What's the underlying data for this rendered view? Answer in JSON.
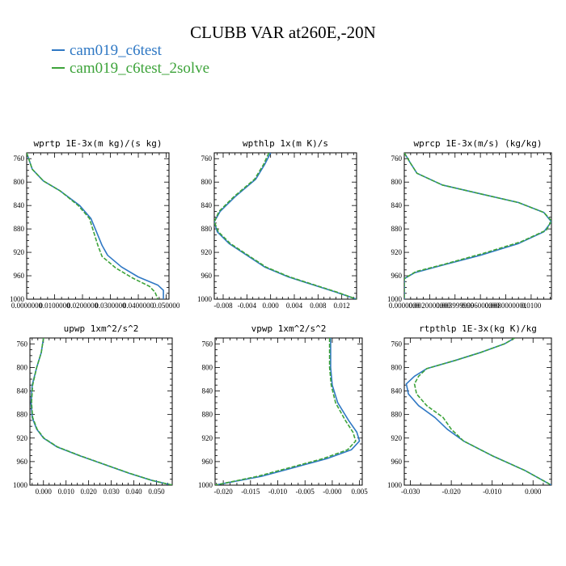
{
  "title": "CLUBB VAR at260E,-20N",
  "legend": [
    {
      "label": "cam019_c6test",
      "color": "#2f78c4"
    },
    {
      "label": "cam019_c6test_2solve",
      "color": "#3da33a"
    }
  ],
  "chart_data": [
    {
      "type": "line",
      "title": "wprtp  1E-3x(m kg)/(s kg)",
      "xlim": [
        0,
        0.051
      ],
      "ylim": [
        1000,
        750
      ],
      "yticks": [
        760,
        800,
        840,
        880,
        920,
        960,
        1000
      ],
      "xticks": [
        0.0,
        0.01,
        0.02,
        0.03,
        0.04,
        0.05
      ],
      "xtick_labels": [
        "0.0000000",
        "0.0100000",
        "0.0200000",
        "0.0300000",
        "0.0400000",
        "0.050000"
      ],
      "series": [
        {
          "color": "#2f78c4",
          "dash": false,
          "points": [
            [
              0.0,
              750
            ],
            [
              0.002,
              778
            ],
            [
              0.006,
              798
            ],
            [
              0.012,
              815
            ],
            [
              0.019,
              840
            ],
            [
              0.023,
              862
            ],
            [
              0.025,
              885
            ],
            [
              0.027,
              908
            ],
            [
              0.029,
              925
            ],
            [
              0.034,
              945
            ],
            [
              0.04,
              962
            ],
            [
              0.047,
              976
            ],
            [
              0.049,
              985
            ],
            [
              0.049,
              1000
            ]
          ]
        },
        {
          "color": "#3da33a",
          "dash": true,
          "points": [
            [
              0.0,
              750
            ],
            [
              0.002,
              778
            ],
            [
              0.006,
              798
            ],
            [
              0.012,
              815
            ],
            [
              0.0185,
              840
            ],
            [
              0.0225,
              862
            ],
            [
              0.024,
              885
            ],
            [
              0.0255,
              908
            ],
            [
              0.027,
              927
            ],
            [
              0.032,
              947
            ],
            [
              0.038,
              964
            ],
            [
              0.044,
              978
            ],
            [
              0.046,
              988
            ],
            [
              0.047,
              1000
            ]
          ]
        }
      ]
    },
    {
      "type": "line",
      "title": "wpthlp  1x(m K)/s",
      "xlim": [
        -0.0095,
        0.0145
      ],
      "ylim": [
        1000,
        750
      ],
      "yticks": [
        760,
        800,
        840,
        880,
        920,
        960,
        1000
      ],
      "xticks": [
        -0.008,
        -0.004,
        0.0,
        0.004,
        0.008,
        0.012
      ],
      "xtick_labels": [
        "-0.008",
        "-0.004",
        "0.000",
        "0.004",
        "0.008",
        "0.012"
      ],
      "series": [
        {
          "color": "#2f78c4",
          "dash": false,
          "points": [
            [
              0.0,
              750
            ],
            [
              -0.001,
              770
            ],
            [
              -0.0025,
              795
            ],
            [
              -0.006,
              825
            ],
            [
              -0.0085,
              850
            ],
            [
              -0.0095,
              868
            ],
            [
              -0.009,
              885
            ],
            [
              -0.007,
              905
            ],
            [
              -0.004,
              925
            ],
            [
              -0.001,
              945
            ],
            [
              0.003,
              962
            ],
            [
              0.007,
              975
            ],
            [
              0.011,
              988
            ],
            [
              0.0145,
              1000
            ]
          ]
        },
        {
          "color": "#3da33a",
          "dash": true,
          "points": [
            [
              -0.0003,
              750
            ],
            [
              -0.0012,
              770
            ],
            [
              -0.0027,
              795
            ],
            [
              -0.0062,
              825
            ],
            [
              -0.0087,
              850
            ],
            [
              -0.0095,
              868
            ],
            [
              -0.0088,
              885
            ],
            [
              -0.0068,
              905
            ],
            [
              -0.0038,
              925
            ],
            [
              -0.0008,
              945
            ],
            [
              0.0032,
              962
            ],
            [
              0.0072,
              975
            ],
            [
              0.0112,
              988
            ],
            [
              0.0145,
              1000
            ]
          ]
        }
      ]
    },
    {
      "type": "line",
      "title": "wprcp  1E-3x(m/s) (kg/kg)",
      "xlim": [
        0,
        0.0116
      ],
      "ylim": [
        1000,
        750
      ],
      "yticks": [
        760,
        800,
        840,
        880,
        920,
        960,
        1000
      ],
      "xticks": [
        0.0,
        0.002,
        0.004,
        0.006,
        0.008,
        0.01
      ],
      "xtick_labels": [
        "0.0000000",
        "0.0020000000",
        "0.003999999",
        "0.006000000",
        "0.0080000001",
        "0.0100"
      ],
      "series": [
        {
          "color": "#2f78c4",
          "dash": false,
          "points": [
            [
              0.0,
              750
            ],
            [
              0.0005,
              768
            ],
            [
              0.001,
              785
            ],
            [
              0.003,
              805
            ],
            [
              0.006,
              820
            ],
            [
              0.009,
              835
            ],
            [
              0.011,
              852
            ],
            [
              0.0116,
              868
            ],
            [
              0.011,
              885
            ],
            [
              0.009,
              905
            ],
            [
              0.006,
              925
            ],
            [
              0.003,
              942
            ],
            [
              0.0008,
              955
            ],
            [
              0.0,
              965
            ],
            [
              0.0,
              1000
            ]
          ]
        },
        {
          "color": "#3da33a",
          "dash": true,
          "points": [
            [
              0.0,
              750
            ],
            [
              0.0005,
              768
            ],
            [
              0.001,
              785
            ],
            [
              0.003,
              805
            ],
            [
              0.006,
              820
            ],
            [
              0.009,
              835
            ],
            [
              0.011,
              852
            ],
            [
              0.0116,
              866
            ],
            [
              0.0112,
              882
            ],
            [
              0.0092,
              902
            ],
            [
              0.0062,
              922
            ],
            [
              0.0032,
              940
            ],
            [
              0.0009,
              953
            ],
            [
              0.0,
              965
            ],
            [
              0.0,
              1000
            ]
          ]
        }
      ]
    },
    {
      "type": "line",
      "title": "upwp  1xm^2/s^2",
      "xlim": [
        -0.006,
        0.057
      ],
      "ylim": [
        1000,
        750
      ],
      "yticks": [
        760,
        800,
        840,
        880,
        920,
        960,
        1000
      ],
      "xticks": [
        0.0,
        0.01,
        0.02,
        0.03,
        0.04,
        0.05
      ],
      "xtick_labels": [
        "0.000",
        "0.010",
        "0.020",
        "0.030",
        "0.040",
        "0.050"
      ],
      "series": [
        {
          "color": "#2f78c4",
          "dash": false,
          "points": [
            [
              0.0,
              750
            ],
            [
              -0.001,
              775
            ],
            [
              -0.003,
              800
            ],
            [
              -0.005,
              830
            ],
            [
              -0.0055,
              860
            ],
            [
              -0.005,
              885
            ],
            [
              -0.003,
              905
            ],
            [
              0.0,
              920
            ],
            [
              0.006,
              935
            ],
            [
              0.016,
              950
            ],
            [
              0.027,
              965
            ],
            [
              0.038,
              980
            ],
            [
              0.048,
              992
            ],
            [
              0.057,
              1000
            ]
          ]
        },
        {
          "color": "#3da33a",
          "dash": true,
          "points": [
            [
              0.0,
              750
            ],
            [
              -0.001,
              775
            ],
            [
              -0.003,
              800
            ],
            [
              -0.0048,
              830
            ],
            [
              -0.0053,
              860
            ],
            [
              -0.0048,
              885
            ],
            [
              -0.0028,
              905
            ],
            [
              0.0002,
              920
            ],
            [
              0.0062,
              935
            ],
            [
              0.0162,
              950
            ],
            [
              0.0272,
              965
            ],
            [
              0.0382,
              980
            ],
            [
              0.0482,
              992
            ],
            [
              0.057,
              1000
            ]
          ]
        }
      ]
    },
    {
      "type": "line",
      "title": "vpwp  1xm^2/s^2",
      "xlim": [
        -0.0215,
        0.0055
      ],
      "ylim": [
        1000,
        750
      ],
      "yticks": [
        760,
        800,
        840,
        880,
        920,
        960,
        1000
      ],
      "xticks": [
        -0.02,
        -0.015,
        -0.01,
        -0.005,
        0.0,
        0.005
      ],
      "xtick_labels": [
        "-0.020",
        "-0.015",
        "-0.010",
        "-0.005",
        "-0.000",
        "0.005"
      ],
      "series": [
        {
          "color": "#2f78c4",
          "dash": false,
          "points": [
            [
              -0.0003,
              750
            ],
            [
              -0.0003,
              800
            ],
            [
              0.0,
              830
            ],
            [
              0.001,
              860
            ],
            [
              0.003,
              890
            ],
            [
              0.0045,
              910
            ],
            [
              0.005,
              925
            ],
            [
              0.0035,
              940
            ],
            [
              -0.001,
              955
            ],
            [
              -0.007,
              970
            ],
            [
              -0.013,
              985
            ],
            [
              -0.0215,
              1000
            ]
          ]
        },
        {
          "color": "#3da33a",
          "dash": true,
          "points": [
            [
              -0.0005,
              750
            ],
            [
              -0.0005,
              800
            ],
            [
              -0.0002,
              830
            ],
            [
              0.0006,
              860
            ],
            [
              0.0024,
              890
            ],
            [
              0.0038,
              910
            ],
            [
              0.0043,
              925
            ],
            [
              0.0028,
              940
            ],
            [
              -0.0017,
              955
            ],
            [
              -0.0077,
              970
            ],
            [
              -0.0137,
              985
            ],
            [
              -0.0215,
              1000
            ]
          ]
        }
      ]
    },
    {
      "type": "line",
      "title": "rtpthlp  1E-3x(kg K)/kg",
      "xlim": [
        -0.0315,
        0.0045
      ],
      "ylim": [
        1000,
        750
      ],
      "yticks": [
        760,
        800,
        840,
        880,
        920,
        960,
        1000
      ],
      "xticks": [
        -0.03,
        -0.02,
        -0.01,
        0.0
      ],
      "xtick_labels": [
        "-0.030",
        "-0.020",
        "-0.010",
        "0.000"
      ],
      "series": [
        {
          "color": "#2f78c4",
          "dash": false,
          "points": [
            [
              -0.0045,
              750
            ],
            [
              -0.007,
              760
            ],
            [
              -0.013,
              775
            ],
            [
              -0.019,
              788
            ],
            [
              -0.026,
              802
            ],
            [
              -0.029,
              815
            ],
            [
              -0.031,
              828
            ],
            [
              -0.0305,
              845
            ],
            [
              -0.028,
              865
            ],
            [
              -0.024,
              885
            ],
            [
              -0.021,
              905
            ],
            [
              -0.017,
              925
            ],
            [
              -0.01,
              950
            ],
            [
              -0.002,
              975
            ],
            [
              0.0045,
              1000
            ]
          ]
        },
        {
          "color": "#3da33a",
          "dash": true,
          "points": [
            [
              -0.0045,
              750
            ],
            [
              -0.007,
              760
            ],
            [
              -0.013,
              775
            ],
            [
              -0.019,
              788
            ],
            [
              -0.026,
              802
            ],
            [
              -0.028,
              815
            ],
            [
              -0.029,
              828
            ],
            [
              -0.0285,
              845
            ],
            [
              -0.026,
              865
            ],
            [
              -0.022,
              885
            ],
            [
              -0.02,
              905
            ],
            [
              -0.017,
              925
            ],
            [
              -0.01,
              950
            ],
            [
              -0.002,
              975
            ],
            [
              0.0045,
              1000
            ]
          ]
        }
      ]
    }
  ]
}
